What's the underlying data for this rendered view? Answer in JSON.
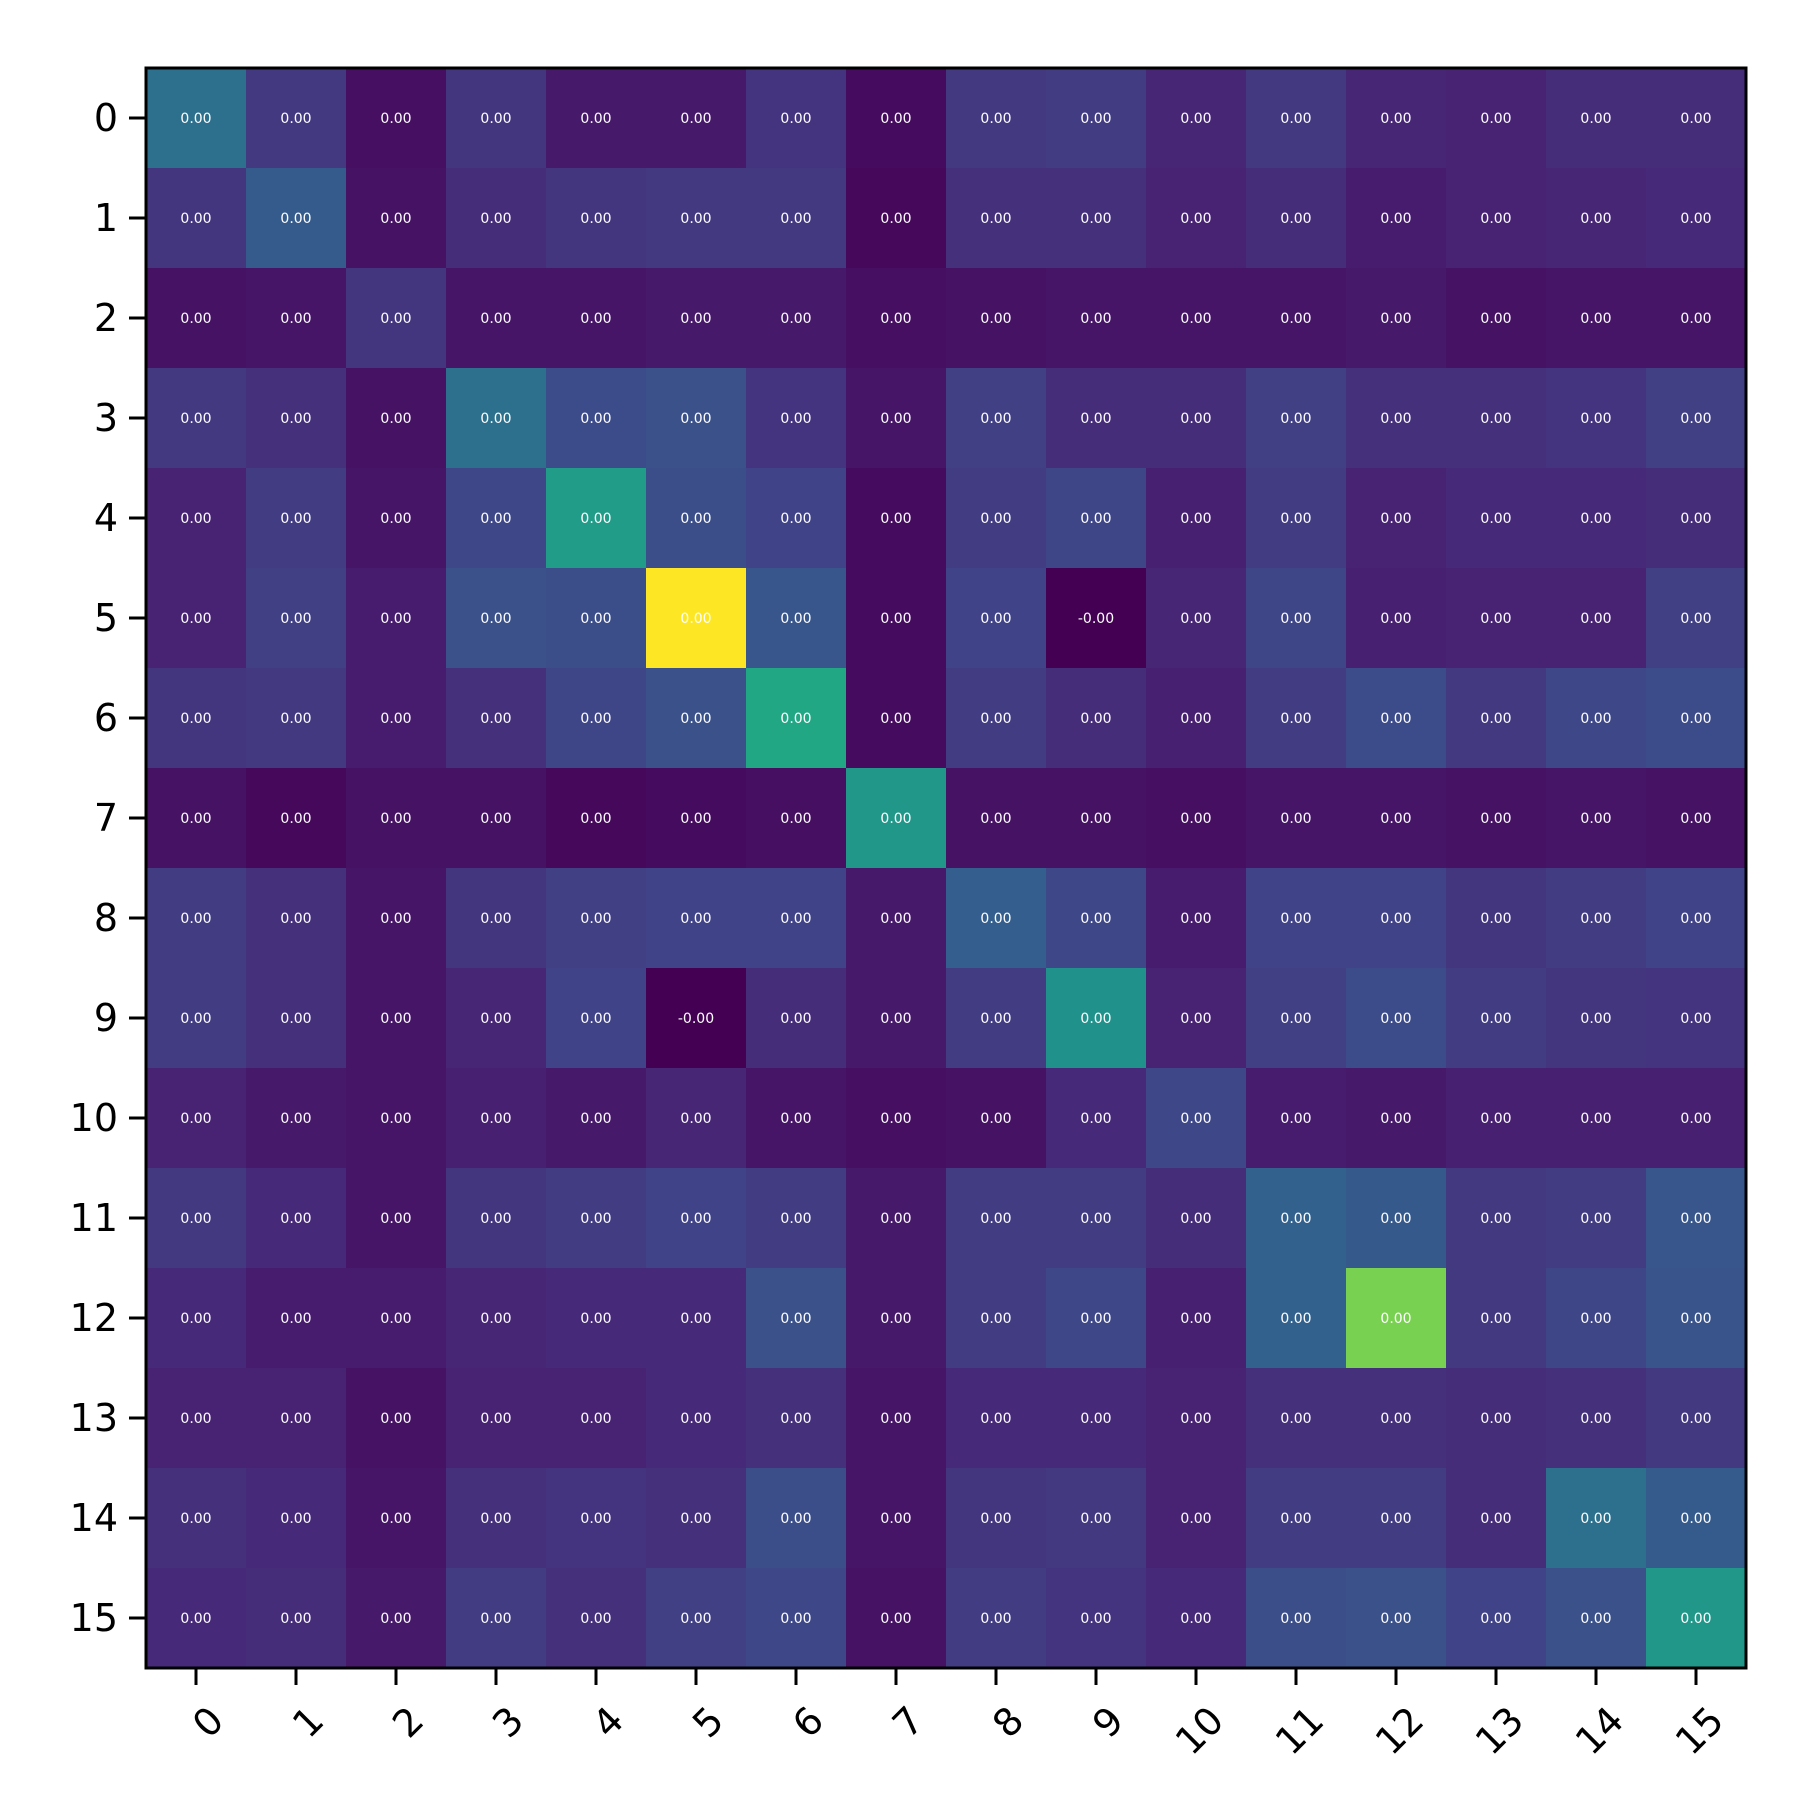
{
  "chart_data": {
    "type": "heatmap",
    "title": "",
    "xlabel": "",
    "ylabel": "",
    "rows": [
      "0",
      "1",
      "2",
      "3",
      "4",
      "5",
      "6",
      "7",
      "8",
      "9",
      "10",
      "11",
      "12",
      "13",
      "14",
      "15"
    ],
    "columns": [
      "0",
      "1",
      "2",
      "3",
      "4",
      "5",
      "6",
      "7",
      "8",
      "9",
      "10",
      "11",
      "12",
      "13",
      "14",
      "15"
    ],
    "colormap": "viridis",
    "value_range": [
      0,
      1
    ],
    "intensity": [
      [
        0.37,
        0.17,
        0.04,
        0.16,
        0.07,
        0.07,
        0.15,
        0.03,
        0.17,
        0.18,
        0.11,
        0.17,
        0.11,
        0.1,
        0.13,
        0.13
      ],
      [
        0.16,
        0.29,
        0.05,
        0.13,
        0.16,
        0.17,
        0.17,
        0.02,
        0.14,
        0.14,
        0.1,
        0.13,
        0.08,
        0.1,
        0.11,
        0.12
      ],
      [
        0.05,
        0.06,
        0.16,
        0.06,
        0.06,
        0.07,
        0.07,
        0.04,
        0.05,
        0.06,
        0.06,
        0.06,
        0.07,
        0.05,
        0.06,
        0.06
      ],
      [
        0.17,
        0.14,
        0.05,
        0.37,
        0.23,
        0.25,
        0.15,
        0.06,
        0.19,
        0.13,
        0.13,
        0.19,
        0.14,
        0.14,
        0.15,
        0.19
      ],
      [
        0.1,
        0.18,
        0.06,
        0.22,
        0.55,
        0.24,
        0.2,
        0.03,
        0.18,
        0.21,
        0.09,
        0.18,
        0.1,
        0.12,
        0.12,
        0.13
      ],
      [
        0.1,
        0.19,
        0.08,
        0.25,
        0.24,
        1.0,
        0.27,
        0.03,
        0.2,
        0.0,
        0.11,
        0.21,
        0.09,
        0.1,
        0.1,
        0.19
      ],
      [
        0.16,
        0.17,
        0.08,
        0.14,
        0.21,
        0.25,
        0.6,
        0.03,
        0.18,
        0.13,
        0.09,
        0.18,
        0.23,
        0.17,
        0.22,
        0.23
      ],
      [
        0.05,
        0.02,
        0.05,
        0.05,
        0.02,
        0.03,
        0.04,
        0.53,
        0.05,
        0.05,
        0.04,
        0.06,
        0.06,
        0.05,
        0.06,
        0.05
      ],
      [
        0.18,
        0.14,
        0.06,
        0.16,
        0.19,
        0.2,
        0.2,
        0.07,
        0.3,
        0.22,
        0.08,
        0.2,
        0.2,
        0.16,
        0.18,
        0.2
      ],
      [
        0.18,
        0.14,
        0.06,
        0.11,
        0.2,
        0.0,
        0.13,
        0.07,
        0.18,
        0.51,
        0.1,
        0.19,
        0.23,
        0.18,
        0.16,
        0.15
      ],
      [
        0.1,
        0.07,
        0.06,
        0.09,
        0.07,
        0.11,
        0.06,
        0.04,
        0.05,
        0.12,
        0.22,
        0.08,
        0.07,
        0.09,
        0.09,
        0.09
      ],
      [
        0.17,
        0.12,
        0.06,
        0.16,
        0.18,
        0.2,
        0.18,
        0.07,
        0.18,
        0.18,
        0.13,
        0.31,
        0.28,
        0.17,
        0.18,
        0.27
      ],
      [
        0.12,
        0.08,
        0.08,
        0.11,
        0.12,
        0.12,
        0.25,
        0.07,
        0.18,
        0.22,
        0.09,
        0.31,
        0.8,
        0.17,
        0.21,
        0.26
      ],
      [
        0.1,
        0.1,
        0.05,
        0.1,
        0.1,
        0.12,
        0.14,
        0.06,
        0.12,
        0.12,
        0.1,
        0.14,
        0.14,
        0.13,
        0.14,
        0.17
      ],
      [
        0.14,
        0.12,
        0.06,
        0.14,
        0.15,
        0.14,
        0.24,
        0.06,
        0.16,
        0.17,
        0.1,
        0.18,
        0.18,
        0.13,
        0.37,
        0.29
      ],
      [
        0.12,
        0.13,
        0.07,
        0.18,
        0.14,
        0.19,
        0.22,
        0.05,
        0.18,
        0.15,
        0.12,
        0.24,
        0.25,
        0.2,
        0.25,
        0.53
      ]
    ],
    "cell_labels": [
      [
        "0.00",
        "0.00",
        "0.00",
        "0.00",
        "0.00",
        "0.00",
        "0.00",
        "0.00",
        "0.00",
        "0.00",
        "0.00",
        "0.00",
        "0.00",
        "0.00",
        "0.00",
        "0.00"
      ],
      [
        "0.00",
        "0.00",
        "0.00",
        "0.00",
        "0.00",
        "0.00",
        "0.00",
        "0.00",
        "0.00",
        "0.00",
        "0.00",
        "0.00",
        "0.00",
        "0.00",
        "0.00",
        "0.00"
      ],
      [
        "0.00",
        "0.00",
        "0.00",
        "0.00",
        "0.00",
        "0.00",
        "0.00",
        "0.00",
        "0.00",
        "0.00",
        "0.00",
        "0.00",
        "0.00",
        "0.00",
        "0.00",
        "0.00"
      ],
      [
        "0.00",
        "0.00",
        "0.00",
        "0.00",
        "0.00",
        "0.00",
        "0.00",
        "0.00",
        "0.00",
        "0.00",
        "0.00",
        "0.00",
        "0.00",
        "0.00",
        "0.00",
        "0.00"
      ],
      [
        "0.00",
        "0.00",
        "0.00",
        "0.00",
        "0.00",
        "0.00",
        "0.00",
        "0.00",
        "0.00",
        "0.00",
        "0.00",
        "0.00",
        "0.00",
        "0.00",
        "0.00",
        "0.00"
      ],
      [
        "0.00",
        "0.00",
        "0.00",
        "0.00",
        "0.00",
        "0.00",
        "0.00",
        "0.00",
        "0.00",
        "-0.00",
        "0.00",
        "0.00",
        "0.00",
        "0.00",
        "0.00",
        "0.00"
      ],
      [
        "0.00",
        "0.00",
        "0.00",
        "0.00",
        "0.00",
        "0.00",
        "0.00",
        "0.00",
        "0.00",
        "0.00",
        "0.00",
        "0.00",
        "0.00",
        "0.00",
        "0.00",
        "0.00"
      ],
      [
        "0.00",
        "0.00",
        "0.00",
        "0.00",
        "0.00",
        "0.00",
        "0.00",
        "0.00",
        "0.00",
        "0.00",
        "0.00",
        "0.00",
        "0.00",
        "0.00",
        "0.00",
        "0.00"
      ],
      [
        "0.00",
        "0.00",
        "0.00",
        "0.00",
        "0.00",
        "0.00",
        "0.00",
        "0.00",
        "0.00",
        "0.00",
        "0.00",
        "0.00",
        "0.00",
        "0.00",
        "0.00",
        "0.00"
      ],
      [
        "0.00",
        "0.00",
        "0.00",
        "0.00",
        "0.00",
        "-0.00",
        "0.00",
        "0.00",
        "0.00",
        "0.00",
        "0.00",
        "0.00",
        "0.00",
        "0.00",
        "0.00",
        "0.00"
      ],
      [
        "0.00",
        "0.00",
        "0.00",
        "0.00",
        "0.00",
        "0.00",
        "0.00",
        "0.00",
        "0.00",
        "0.00",
        "0.00",
        "0.00",
        "0.00",
        "0.00",
        "0.00",
        "0.00"
      ],
      [
        "0.00",
        "0.00",
        "0.00",
        "0.00",
        "0.00",
        "0.00",
        "0.00",
        "0.00",
        "0.00",
        "0.00",
        "0.00",
        "0.00",
        "0.00",
        "0.00",
        "0.00",
        "0.00"
      ],
      [
        "0.00",
        "0.00",
        "0.00",
        "0.00",
        "0.00",
        "0.00",
        "0.00",
        "0.00",
        "0.00",
        "0.00",
        "0.00",
        "0.00",
        "0.00",
        "0.00",
        "0.00",
        "0.00"
      ],
      [
        "0.00",
        "0.00",
        "0.00",
        "0.00",
        "0.00",
        "0.00",
        "0.00",
        "0.00",
        "0.00",
        "0.00",
        "0.00",
        "0.00",
        "0.00",
        "0.00",
        "0.00",
        "0.00"
      ],
      [
        "0.00",
        "0.00",
        "0.00",
        "0.00",
        "0.00",
        "0.00",
        "0.00",
        "0.00",
        "0.00",
        "0.00",
        "0.00",
        "0.00",
        "0.00",
        "0.00",
        "0.00",
        "0.00"
      ],
      [
        "0.00",
        "0.00",
        "0.00",
        "0.00",
        "0.00",
        "0.00",
        "0.00",
        "0.00",
        "0.00",
        "0.00",
        "0.00",
        "0.00",
        "0.00",
        "0.00",
        "0.00",
        "0.00"
      ]
    ],
    "grid": false,
    "legend": "none",
    "colorbar": false
  }
}
